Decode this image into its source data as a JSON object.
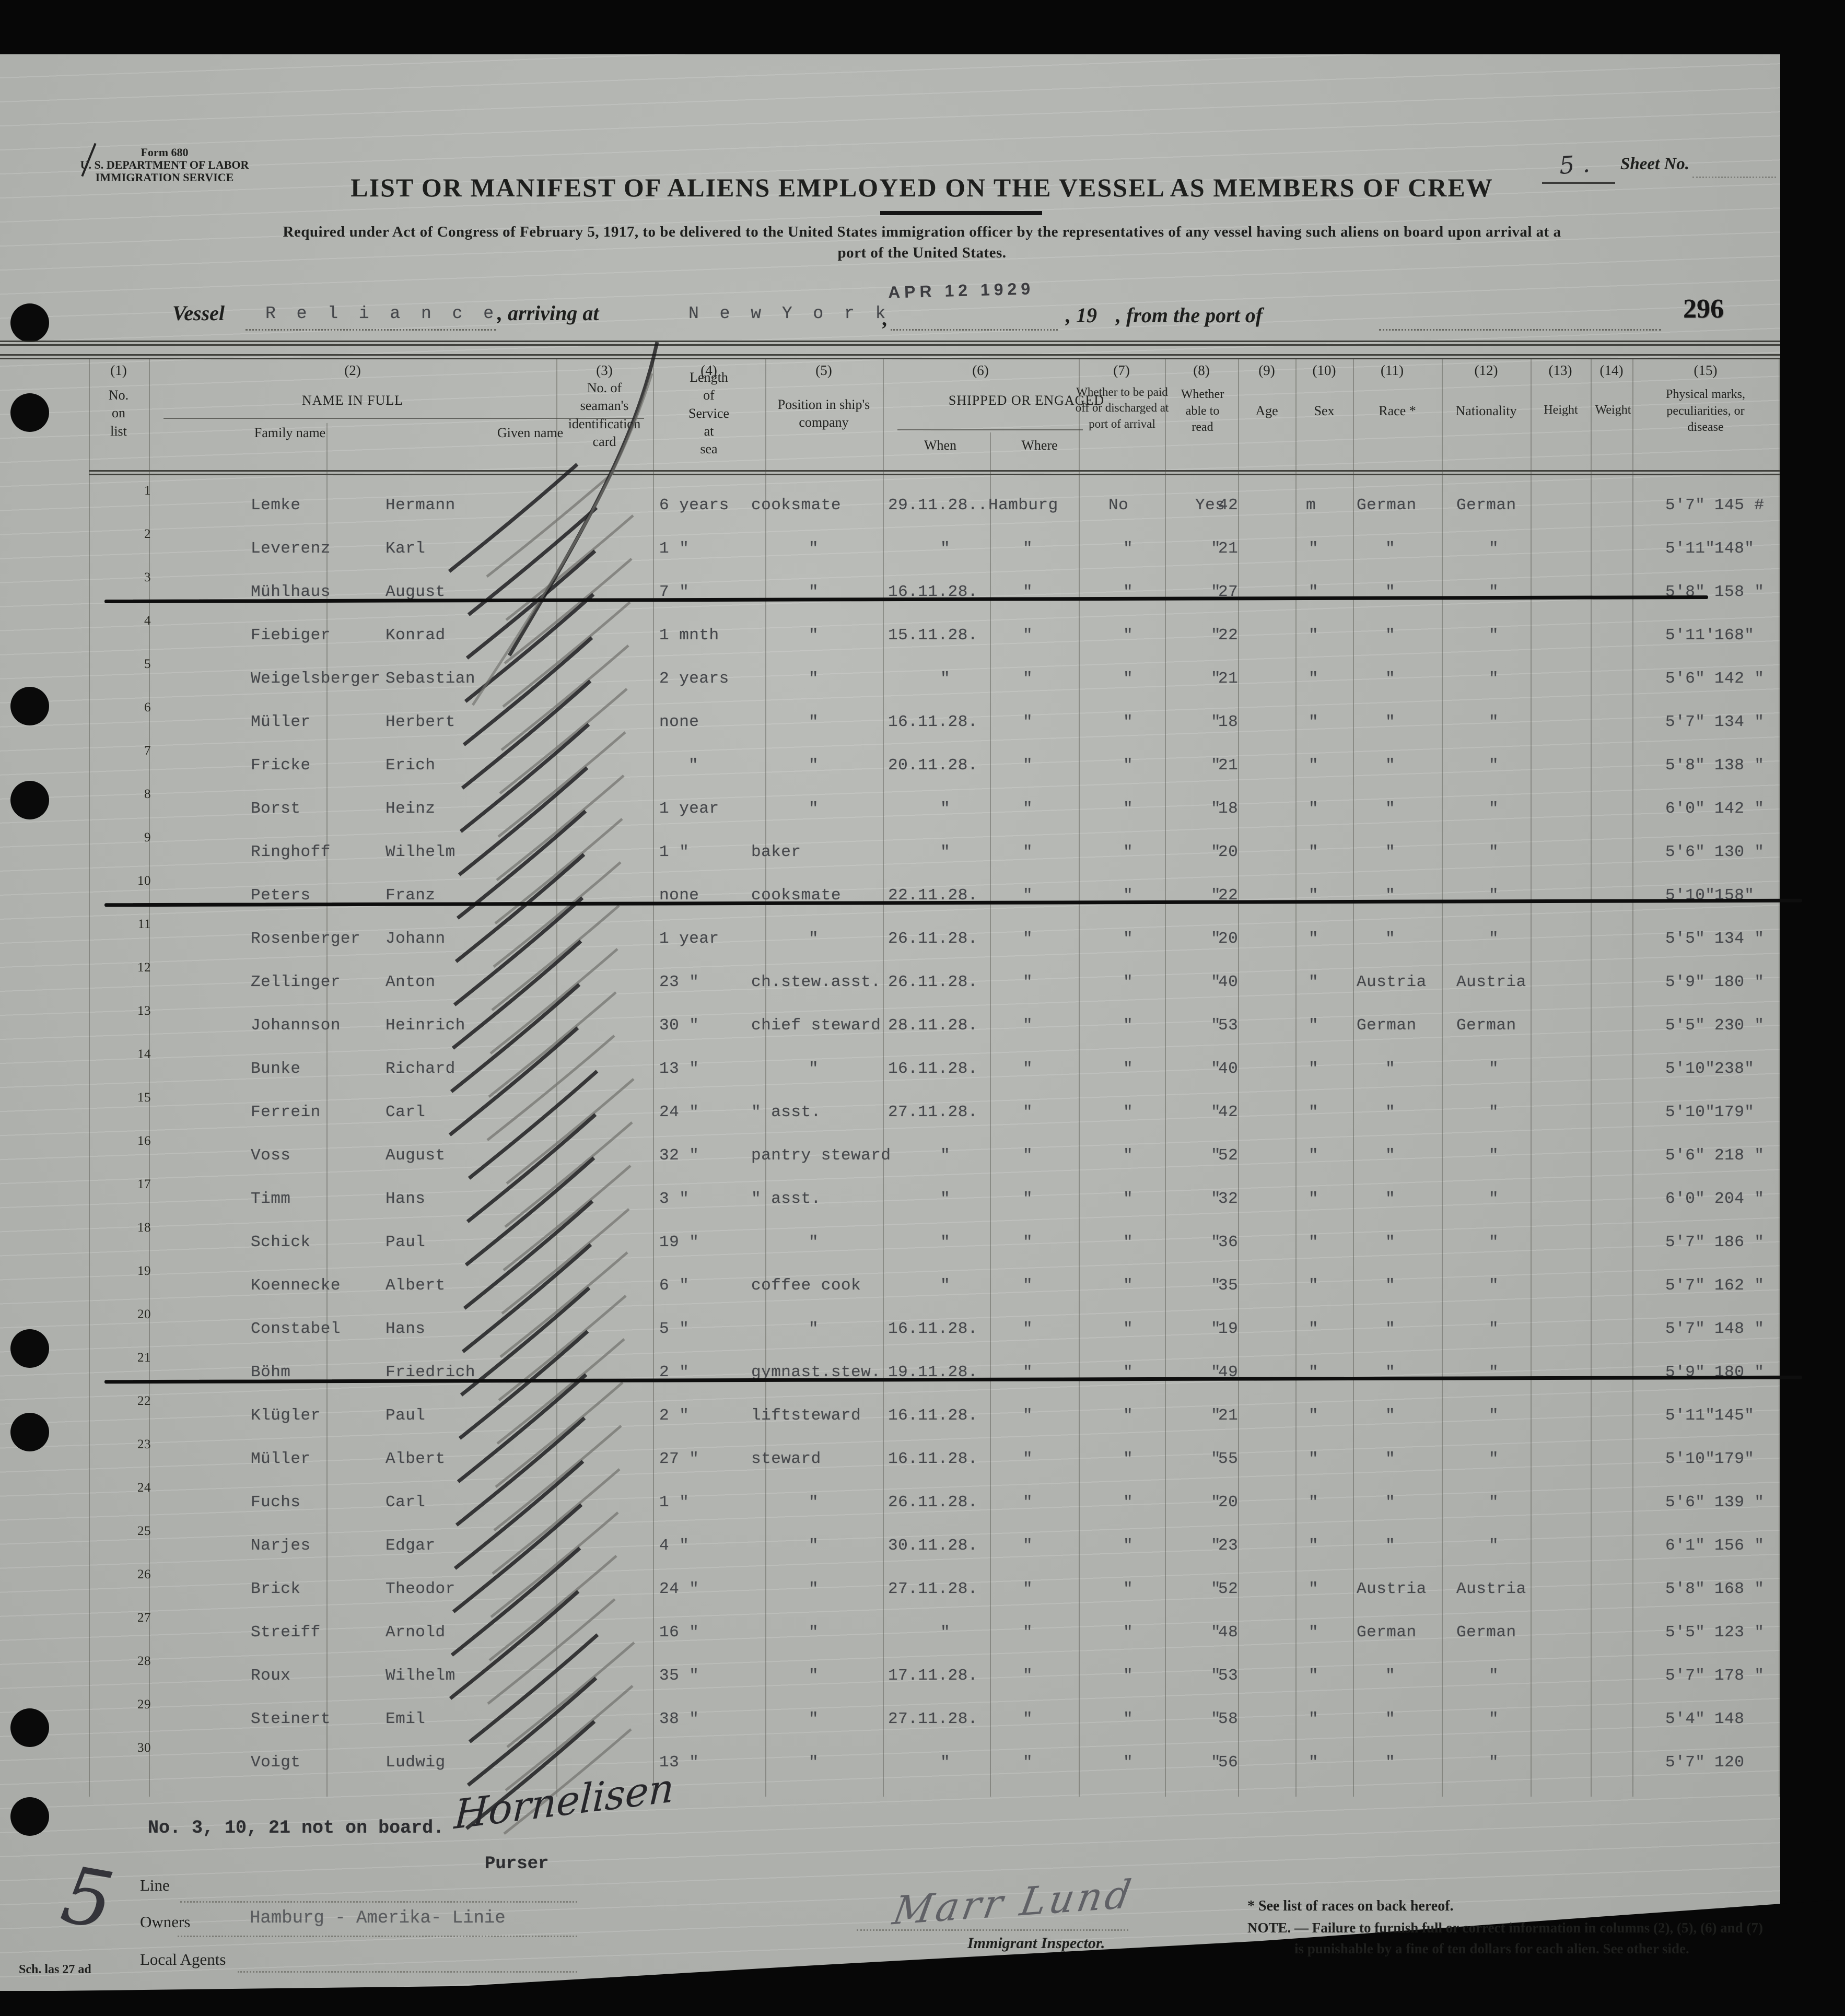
{
  "form": {
    "form_no": "Form 680",
    "dept": "U. S. DEPARTMENT OF LABOR",
    "service": "IMMIGRATION SERVICE",
    "title": "LIST OR MANIFEST OF ALIENS EMPLOYED ON THE VESSEL AS MEMBERS OF CREW",
    "subtitle1": "Required under Act of Congress of February 5, 1917, to be delivered to the United States immigration officer by the representatives of any vessel having such aliens on board upon arrival at a",
    "subtitle2": "port of the United States.",
    "sheet_value": "5 .",
    "sheet_label": "Sheet No.",
    "vessel_label": "Vessel",
    "vessel_name": "R e l i a n c e",
    "arriving_label": ", arriving at",
    "port_value": "N e w  Y o r k",
    "comma": ",",
    "date_stamp": "APR 12 1929",
    "year_label": ", 19",
    "from_port_label": ", from the port of",
    "page_no": "296"
  },
  "table": {
    "col_numbers": [
      "(1)",
      "(2)",
      "(3)",
      "(4)",
      "(5)",
      "(6)",
      "(7)",
      "(8)",
      "(9)",
      "(10)",
      "(11)",
      "(12)",
      "(13)",
      "(14)",
      "(15)"
    ],
    "headers": {
      "h1": "No.\non\nlist",
      "h2": "NAME IN FULL",
      "h2a": "Family name",
      "h2b": "Given name",
      "h3": "No. of\nseaman's\nidentification\ncard",
      "h4": "Length\nof\nService\nat\nsea",
      "h5": "Position in ship's\ncompany",
      "h6": "SHIPPED OR ENGAGED",
      "h6a": "When",
      "h6b": "Where",
      "h7": "Whether to be paid\noff or discharged at\nport of arrival",
      "h8": "Whether\nable to\nread",
      "h9": "Age",
      "h10": "Sex",
      "h11": "Race *",
      "h12": "Nationality",
      "h13": "Height",
      "h14": "Weight",
      "h15": "Physical marks,\npeculiarities, or\ndisease"
    },
    "rows": [
      {
        "num": "1",
        "family": "Lemke",
        "given": "Hermann",
        "service": "6 years",
        "position": "cooksmate",
        "when": "29.11.28..",
        "where": "Hamburg",
        "paid": "No",
        "read": "Yes",
        "age": "42",
        "sex": "m",
        "race": "German",
        "nat": "German",
        "height": "5'7\"",
        "weight": "145 #",
        "struck": false
      },
      {
        "num": "2",
        "family": "Leverenz",
        "given": "Karl",
        "service": "1 \"",
        "position": "\"",
        "when": "\"",
        "where": "\"",
        "paid": "\"",
        "read": "\"",
        "age": "21",
        "sex": "\"",
        "race": "\"",
        "nat": "\"",
        "height": "5'11\"",
        "weight": "148\"",
        "struck": false
      },
      {
        "num": "3",
        "family": "Mühlhaus",
        "given": "August",
        "service": "7 \"",
        "position": "\"",
        "when": "16.11.28.",
        "where": "\"",
        "paid": "\"",
        "read": "\"",
        "age": "27",
        "sex": "\"",
        "race": "\"",
        "nat": "\"",
        "height": "5'8\"",
        "weight": "158 \"",
        "struck": true
      },
      {
        "num": "4",
        "family": "Fiebiger",
        "given": "Konrad",
        "service": "1 mnth",
        "position": "\"",
        "when": "15.11.28.",
        "where": "\"",
        "paid": "\"",
        "read": "\"",
        "age": "22",
        "sex": "\"",
        "race": "\"",
        "nat": "\"",
        "height": "5'11'",
        "weight": "168\"",
        "struck": false
      },
      {
        "num": "5",
        "family": "Weigelsberger",
        "given": "Sebastian",
        "service": "2 years",
        "position": "\"",
        "when": "\"",
        "where": "\"",
        "paid": "\"",
        "read": "\"",
        "age": "21",
        "sex": "\"",
        "race": "\"",
        "nat": "\"",
        "height": "5'6\"",
        "weight": "142 \"",
        "struck": false
      },
      {
        "num": "6",
        "family": "Müller",
        "given": "Herbert",
        "service": "none",
        "position": "\"",
        "when": "16.11.28.",
        "where": "\"",
        "paid": "\"",
        "read": "\"",
        "age": "18",
        "sex": "\"",
        "race": "\"",
        "nat": "\"",
        "height": "5'7\"",
        "weight": "134 \"",
        "struck": false
      },
      {
        "num": "7",
        "family": "Fricke",
        "given": "Erich",
        "service": "\"",
        "position": "\"",
        "when": "20.11.28.",
        "where": "\"",
        "paid": "\"",
        "read": "\"",
        "age": "21",
        "sex": "\"",
        "race": "\"",
        "nat": "\"",
        "height": "5'8\"",
        "weight": "138 \"",
        "struck": false
      },
      {
        "num": "8",
        "family": "Borst",
        "given": "Heinz",
        "service": "1 year",
        "position": "\"",
        "when": "\"",
        "where": "\"",
        "paid": "\"",
        "read": "\"",
        "age": "18",
        "sex": "\"",
        "race": "\"",
        "nat": "\"",
        "height": "6'0\"",
        "weight": "142 \"",
        "struck": false
      },
      {
        "num": "9",
        "family": "Ringhoff",
        "given": "Wilhelm",
        "service": "1 \"",
        "position": "baker",
        "when": "\"",
        "where": "\"",
        "paid": "\"",
        "read": "\"",
        "age": "20",
        "sex": "\"",
        "race": "\"",
        "nat": "\"",
        "height": "5'6\"",
        "weight": "130 \"",
        "struck": false
      },
      {
        "num": "10",
        "family": "Peters",
        "given": "Franz",
        "service": "none",
        "position": "cooksmate",
        "when": "22.11.28.",
        "where": "\"",
        "paid": "\"",
        "read": "\"",
        "age": "22",
        "sex": "\"",
        "race": "\"",
        "nat": "\"",
        "height": "5'10\"",
        "weight": "158\"",
        "struck": true
      },
      {
        "num": "11",
        "family": "Rosenberger",
        "given": "Johann",
        "service": "1 year",
        "position": "\"",
        "when": "26.11.28.",
        "where": "\"",
        "paid": "\"",
        "read": "\"",
        "age": "20",
        "sex": "\"",
        "race": "\"",
        "nat": "\"",
        "height": "5'5\"",
        "weight": "134 \"",
        "struck": false
      },
      {
        "num": "12",
        "family": "Zellinger",
        "given": "Anton",
        "service": "23 \"",
        "position": "ch.stew.asst.",
        "when": "26.11.28.",
        "where": "\"",
        "paid": "\"",
        "read": "\"",
        "age": "40",
        "sex": "\"",
        "race": "Austria",
        "nat": "Austria",
        "height": "5'9\"",
        "weight": "180 \"",
        "struck": false
      },
      {
        "num": "13",
        "family": "Johannson",
        "given": "Heinrich",
        "service": "30 \"",
        "position": "chief steward",
        "when": "28.11.28.",
        "where": "\"",
        "paid": "\"",
        "read": "\"",
        "age": "53",
        "sex": "\"",
        "race": "German",
        "nat": "German",
        "height": "5'5\"",
        "weight": "230 \"",
        "struck": false
      },
      {
        "num": "14",
        "family": "Bunke",
        "given": "Richard",
        "service": "13 \"",
        "position": "\"",
        "when": "16.11.28.",
        "where": "\"",
        "paid": "\"",
        "read": "\"",
        "age": "40",
        "sex": "\"",
        "race": "\"",
        "nat": "\"",
        "height": "5'10\"",
        "weight": "238\"",
        "struck": false
      },
      {
        "num": "15",
        "family": "Ferrein",
        "given": "Carl",
        "service": "24 \"",
        "position": "\" asst.",
        "when": "27.11.28.",
        "where": "\"",
        "paid": "\"",
        "read": "\"",
        "age": "42",
        "sex": "\"",
        "race": "\"",
        "nat": "\"",
        "height": "5'10\"",
        "weight": "179\"",
        "struck": false
      },
      {
        "num": "16",
        "family": "Voss",
        "given": "August",
        "service": "32 \"",
        "position": "pantry steward",
        "when": "\"",
        "where": "\"",
        "paid": "\"",
        "read": "\"",
        "age": "52",
        "sex": "\"",
        "race": "\"",
        "nat": "\"",
        "height": "5'6\"",
        "weight": "218 \"",
        "struck": false
      },
      {
        "num": "17",
        "family": "Timm",
        "given": "Hans",
        "service": "3 \"",
        "position": "\" asst.",
        "when": "\"",
        "where": "\"",
        "paid": "\"",
        "read": "\"",
        "age": "32",
        "sex": "\"",
        "race": "\"",
        "nat": "\"",
        "height": "6'0\"",
        "weight": "204 \"",
        "struck": false
      },
      {
        "num": "18",
        "family": "Schick",
        "given": "Paul",
        "service": "19 \"",
        "position": "\"",
        "when": "\"",
        "where": "\"",
        "paid": "\"",
        "read": "\"",
        "age": "36",
        "sex": "\"",
        "race": "\"",
        "nat": "\"",
        "height": "5'7\"",
        "weight": "186 \"",
        "struck": false
      },
      {
        "num": "19",
        "family": "Koennecke",
        "given": "Albert",
        "service": "6 \"",
        "position": "coffee cook",
        "when": "\"",
        "where": "\"",
        "paid": "\"",
        "read": "\"",
        "age": "35",
        "sex": "\"",
        "race": "\"",
        "nat": "\"",
        "height": "5'7\"",
        "weight": "162 \"",
        "struck": false
      },
      {
        "num": "20",
        "family": "Constabel",
        "given": "Hans",
        "service": "5 \"",
        "position": "\"",
        "when": "16.11.28.",
        "where": "\"",
        "paid": "\"",
        "read": "\"",
        "age": "19",
        "sex": "\"",
        "race": "\"",
        "nat": "\"",
        "height": "5'7\"",
        "weight": "148 \"",
        "struck": false
      },
      {
        "num": "21",
        "family": "Böhm",
        "given": "Friedrich",
        "service": "2 \"",
        "position": "gymnast.stew.",
        "when": "19.11.28.",
        "where": "\"",
        "paid": "\"",
        "read": "\"",
        "age": "49",
        "sex": "\"",
        "race": "\"",
        "nat": "\"",
        "height": "5'9\"",
        "weight": "180 \"",
        "struck": true
      },
      {
        "num": "22",
        "family": "Klügler",
        "given": "Paul",
        "service": "2 \"",
        "position": "liftsteward",
        "when": "16.11.28.",
        "where": "\"",
        "paid": "\"",
        "read": "\"",
        "age": "21",
        "sex": "\"",
        "race": "\"",
        "nat": "\"",
        "height": "5'11\"",
        "weight": "145\"",
        "struck": false
      },
      {
        "num": "23",
        "family": "Müller",
        "given": "Albert",
        "service": "27 \"",
        "position": "steward",
        "when": "16.11.28.",
        "where": "\"",
        "paid": "\"",
        "read": "\"",
        "age": "55",
        "sex": "\"",
        "race": "\"",
        "nat": "\"",
        "height": "5'10\"",
        "weight": "179\"",
        "struck": false
      },
      {
        "num": "24",
        "family": "Fuchs",
        "given": "Carl",
        "service": "1 \"",
        "position": "\"",
        "when": "26.11.28.",
        "where": "\"",
        "paid": "\"",
        "read": "\"",
        "age": "20",
        "sex": "\"",
        "race": "\"",
        "nat": "\"",
        "height": "5'6\"",
        "weight": "139 \"",
        "struck": false
      },
      {
        "num": "25",
        "family": "Narjes",
        "given": "Edgar",
        "service": "4 \"",
        "position": "\"",
        "when": "30.11.28.",
        "where": "\"",
        "paid": "\"",
        "read": "\"",
        "age": "23",
        "sex": "\"",
        "race": "\"",
        "nat": "\"",
        "height": "6'1\"",
        "weight": "156 \"",
        "struck": false
      },
      {
        "num": "26",
        "family": "Brick",
        "given": "Theodor",
        "service": "24 \"",
        "position": "\"",
        "when": "27.11.28.",
        "where": "\"",
        "paid": "\"",
        "read": "\"",
        "age": "52",
        "sex": "\"",
        "race": "Austria",
        "nat": "Austria",
        "height": "5'8\"",
        "weight": "168 \"",
        "struck": false
      },
      {
        "num": "27",
        "family": "Streiff",
        "given": "Arnold",
        "service": "16 \"",
        "position": "\"",
        "when": "\"",
        "where": "\"",
        "paid": "\"",
        "read": "\"",
        "age": "48",
        "sex": "\"",
        "race": "German",
        "nat": "German",
        "height": "5'5\"",
        "weight": "123 \"",
        "struck": false
      },
      {
        "num": "28",
        "family": "Roux",
        "given": "Wilhelm",
        "service": "35 \"",
        "position": "\"",
        "when": "17.11.28.",
        "where": "\"",
        "paid": "\"",
        "read": "\"",
        "age": "53",
        "sex": "\"",
        "race": "\"",
        "nat": "\"",
        "height": "5'7\"",
        "weight": "178 \"",
        "struck": false
      },
      {
        "num": "29",
        "family": "Steinert",
        "given": "Emil",
        "service": "38 \"",
        "position": "\"",
        "when": "27.11.28.",
        "where": "\"",
        "paid": "\"",
        "read": "\"",
        "age": "58",
        "sex": "\"",
        "race": "\"",
        "nat": "\"",
        "height": "5'4\"",
        "weight": "148",
        "struck": false
      },
      {
        "num": "30",
        "family": "Voigt",
        "given": "Ludwig",
        "service": "13 \"",
        "position": "\"",
        "when": "\"",
        "where": "\"",
        "paid": "\"",
        "read": "\"",
        "age": "56",
        "sex": "\"",
        "race": "\"",
        "nat": "\"",
        "height": "5'7\"",
        "weight": "120",
        "struck": false
      }
    ]
  },
  "footer": {
    "not_on_board": "No. 3, 10, 21 not on board.",
    "purser_signature": "Hornelisen",
    "purser_label": "Purser",
    "line_label": "Line",
    "owners_label": "Owners",
    "owners_value": "Hamburg - Amerika- Linie",
    "agents_label": "Local Agents",
    "sheet_mark": "5",
    "plate_mark": "Sch. las 27 ad",
    "inspector_signature": "Marr Lund",
    "inspector_label": "Immigrant Inspector.",
    "races_note": "* See list of races on back hereof.",
    "note_line1": "NOTE. — Failure to furnish full or correct information in columns (2), (5), (6) and (7)",
    "note_line2": "is punishable by a fine of ten dollars for each alien.  See other side."
  }
}
